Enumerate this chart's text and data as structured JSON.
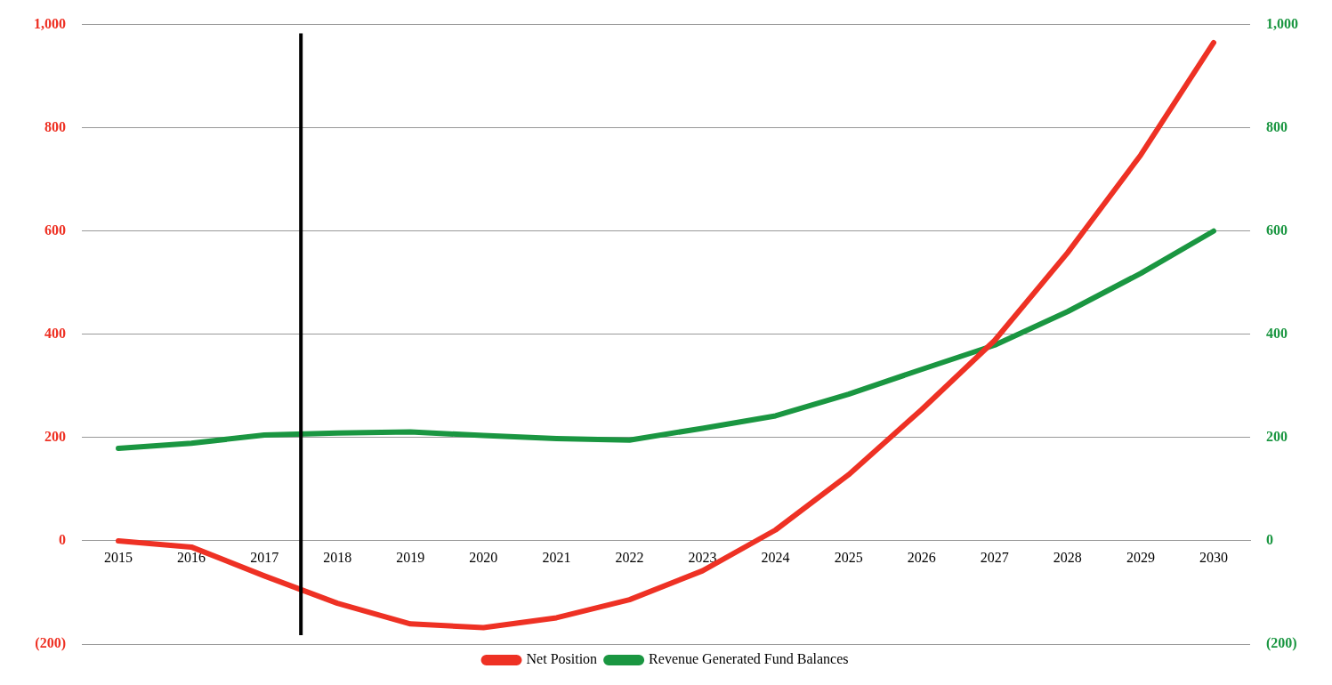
{
  "chart_data": {
    "type": "line",
    "x": [
      2015,
      2016,
      2017,
      2018,
      2019,
      2020,
      2021,
      2022,
      2023,
      2024,
      2025,
      2026,
      2027,
      2028,
      2029,
      2030
    ],
    "xlim": [
      2014.5,
      2030.5
    ],
    "xticks": [
      2015,
      2016,
      2017,
      2018,
      2019,
      2020,
      2021,
      2022,
      2023,
      2024,
      2025,
      2026,
      2027,
      2028,
      2029,
      2030
    ],
    "ylim": [
      -200,
      1000
    ],
    "yticks": [
      {
        "value": -200,
        "label": "(200)"
      },
      0,
      200,
      400,
      600,
      800,
      {
        "value": 1000,
        "label": "1,000"
      }
    ],
    "y2lim": [
      -200,
      1000
    ],
    "y2ticks": [
      {
        "value": -200,
        "label": "(200)"
      },
      0,
      200,
      400,
      600,
      800,
      {
        "value": 1000,
        "label": "1,000"
      }
    ],
    "series": [
      {
        "name": "Net Position",
        "color": "#ee3124",
        "values": [
          0,
          -12,
          -68,
          -121,
          -161,
          -168,
          -149,
          -114,
          -58,
          21,
          128,
          254,
          388,
          558,
          747,
          965
        ]
      },
      {
        "name": "Revenue Generated Fund Balances",
        "color": "#1a9641",
        "axis": "y2",
        "values": [
          179,
          189,
          205,
          209,
          211,
          204,
          198,
          195,
          218,
          242,
          284,
          332,
          379,
          444,
          518,
          600
        ]
      }
    ],
    "ref_lines": [
      {
        "axis": "x",
        "value": 2017.5,
        "color": "#000000"
      }
    ],
    "grid": "y",
    "legend": "bottom",
    "marker": "none",
    "line_style": "solid"
  }
}
